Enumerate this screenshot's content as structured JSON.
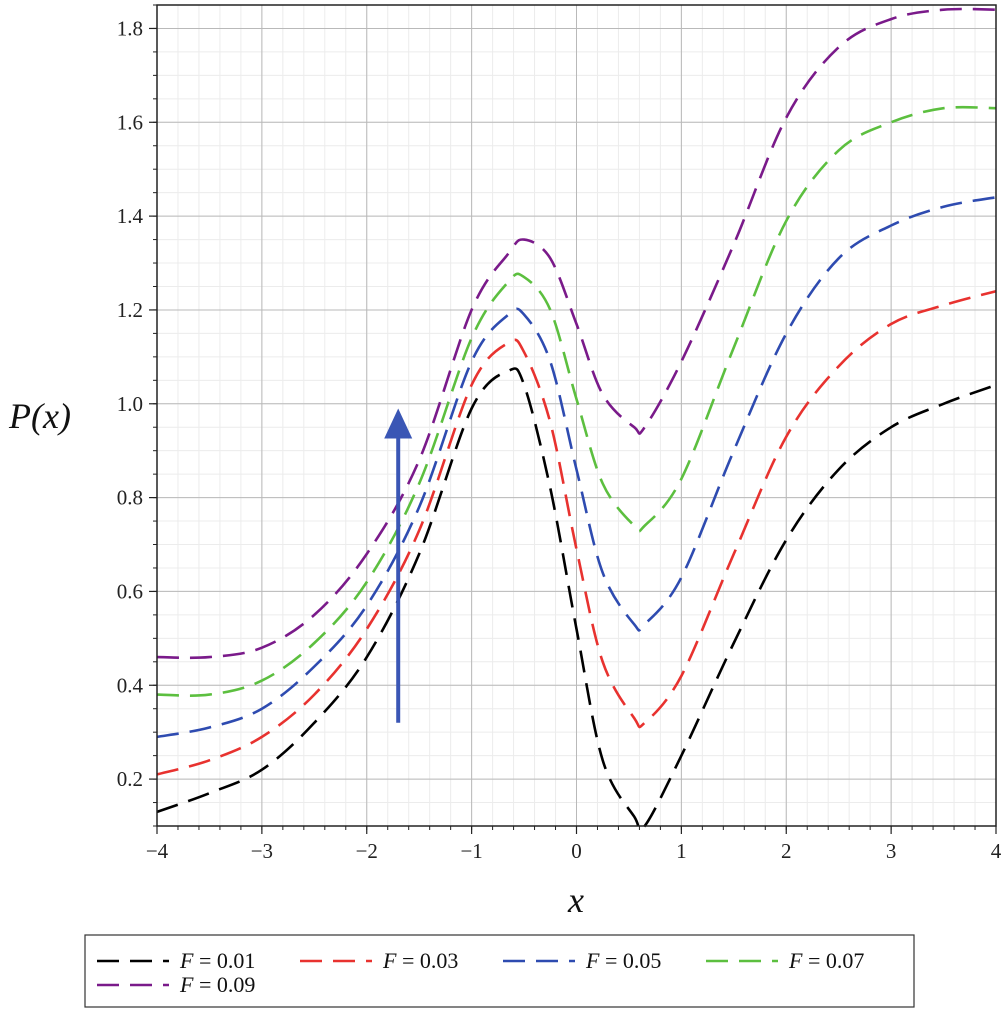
{
  "chart_data": {
    "type": "line",
    "xlabel": "x",
    "ylabel": "P(x)",
    "xlim": [
      -4,
      4
    ],
    "ylim": [
      0.1,
      1.85
    ],
    "x_ticks": [
      -4,
      -3,
      -2,
      -1,
      0,
      1,
      2,
      3,
      4
    ],
    "x_tick_labels": [
      "−4",
      "−3",
      "−2",
      "−1",
      "0",
      "1",
      "2",
      "3",
      "4"
    ],
    "y_ticks": [
      0.2,
      0.4,
      0.6,
      0.8,
      1.0,
      1.2,
      1.4,
      1.6,
      1.8
    ],
    "y_tick_labels": [
      "0.2",
      "0.4",
      "0.6",
      "0.8",
      "1.0",
      "1.2",
      "1.4",
      "1.6",
      "1.8"
    ],
    "grid": true,
    "line_style": "dashed",
    "legend_position": "bottom",
    "x": [
      -4,
      -3.5,
      -3,
      -2.5,
      -2,
      -1.5,
      -1,
      -0.65,
      -0.5,
      -0.25,
      0,
      0.25,
      0.55,
      0.65,
      1,
      1.5,
      2,
      2.5,
      3,
      3.5,
      4
    ],
    "series": [
      {
        "name": "F = 0.01",
        "legend_label": "= 0.01",
        "color": "#000000",
        "values": [
          0.13,
          0.17,
          0.22,
          0.32,
          0.46,
          0.68,
          0.99,
          1.07,
          1.04,
          0.82,
          0.52,
          0.24,
          0.12,
          0.1,
          0.25,
          0.49,
          0.71,
          0.86,
          0.95,
          1.0,
          1.04
        ]
      },
      {
        "name": "F = 0.03",
        "legend_label": "= 0.03",
        "color": "#e8322f",
        "values": [
          0.21,
          0.24,
          0.29,
          0.38,
          0.52,
          0.73,
          1.04,
          1.13,
          1.11,
          0.96,
          0.69,
          0.45,
          0.33,
          0.32,
          0.42,
          0.68,
          0.93,
          1.08,
          1.17,
          1.21,
          1.24
        ]
      },
      {
        "name": "F = 0.05",
        "legend_label": "= 0.05",
        "color": "#2e4bb0",
        "values": [
          0.29,
          0.31,
          0.35,
          0.44,
          0.57,
          0.78,
          1.09,
          1.19,
          1.19,
          1.09,
          0.86,
          0.64,
          0.53,
          0.53,
          0.63,
          0.9,
          1.15,
          1.31,
          1.38,
          1.42,
          1.44
        ]
      },
      {
        "name": "F = 0.07",
        "legend_label": "= 0.07",
        "color": "#5cbf3f",
        "values": [
          0.38,
          0.38,
          0.41,
          0.49,
          0.62,
          0.83,
          1.14,
          1.26,
          1.27,
          1.2,
          1.01,
          0.83,
          0.74,
          0.74,
          0.84,
          1.12,
          1.39,
          1.54,
          1.6,
          1.63,
          1.63
        ]
      },
      {
        "name": "F = 0.09",
        "legend_label": "= 0.09",
        "color": "#7a1a8a",
        "values": [
          0.46,
          0.46,
          0.48,
          0.55,
          0.68,
          0.88,
          1.2,
          1.32,
          1.35,
          1.31,
          1.17,
          1.02,
          0.95,
          0.95,
          1.09,
          1.34,
          1.61,
          1.76,
          1.82,
          1.84,
          1.84
        ]
      }
    ],
    "annotations": [
      {
        "type": "arrow",
        "direction": "up",
        "color": "#3a56b5",
        "x": -1.7,
        "y_from": 0.32,
        "y_to": 0.99,
        "meaning": "increasing F"
      }
    ]
  }
}
